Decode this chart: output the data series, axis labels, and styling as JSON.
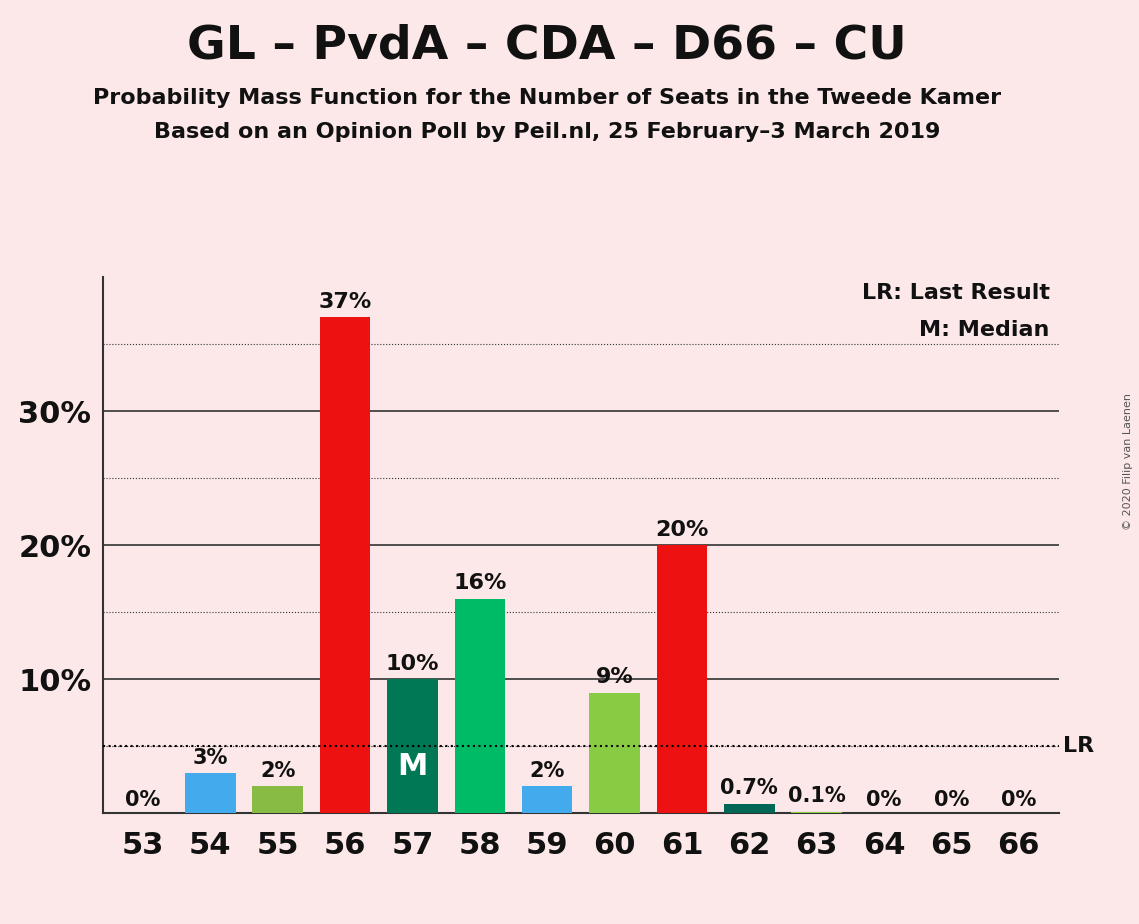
{
  "title": "GL – PvdA – CDA – D66 – CU",
  "subtitle1": "Probability Mass Function for the Number of Seats in the Tweede Kamer",
  "subtitle2": "Based on an Opinion Poll by Peil.nl, 25 February–3 March 2019",
  "copyright": "© 2020 Filip van Laenen",
  "seats": [
    53,
    54,
    55,
    56,
    57,
    58,
    59,
    60,
    61,
    62,
    63,
    64,
    65,
    66
  ],
  "values": [
    0.001,
    3.0,
    2.0,
    37.0,
    10.0,
    16.0,
    2.0,
    9.0,
    20.0,
    0.7,
    0.1,
    0.001,
    0.001,
    0.001
  ],
  "bar_colors": [
    "#ee1111",
    "#44aaee",
    "#88bb44",
    "#ee1111",
    "#007755",
    "#00bb66",
    "#44aaee",
    "#88cc44",
    "#ee1111",
    "#006655",
    "#88cc44",
    "#ee1111",
    "#44aaee",
    "#88cc44"
  ],
  "labels": [
    "0%",
    "3%",
    "2%",
    "37%",
    "10%",
    "16%",
    "2%",
    "9%",
    "20%",
    "0.7%",
    "0.1%",
    "0%",
    "0%",
    "0%"
  ],
  "median_seat": 57,
  "lr_value": 5.0,
  "ylim": [
    0,
    40
  ],
  "major_yticks": [
    10,
    20,
    30
  ],
  "dotted_yticks": [
    5,
    15,
    25,
    35
  ],
  "background_color": "#fce8e8",
  "legend_lr": "LR: Last Result",
  "legend_m": "M: Median",
  "title_fontsize": 34,
  "subtitle_fontsize": 16,
  "ytick_fontsize": 22,
  "xtick_fontsize": 22,
  "label_fontsize": 15,
  "legend_fontsize": 16
}
